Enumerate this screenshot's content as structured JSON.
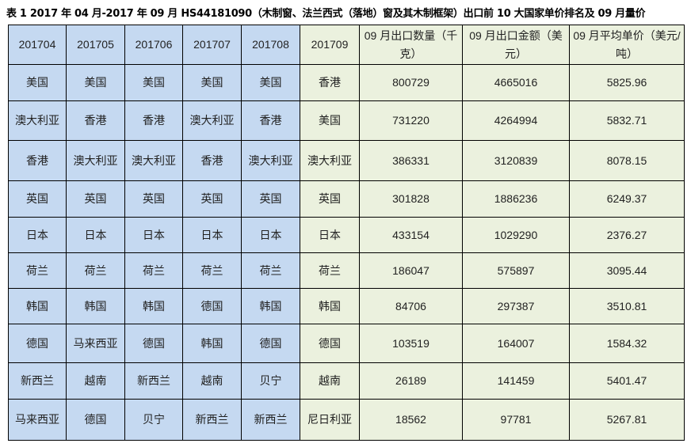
{
  "title": "表 1 2017 年 04 月-2017 年 09 月 HS44181090（木制窗、法兰西式（落地）窗及其木制框架）出口前 10 大国家单价排名及 09 月量价",
  "colors": {
    "blue_cols": "#c5d9f1",
    "green_cols": "#ebf1de"
  },
  "headers": [
    "201704",
    "201705",
    "201706",
    "201707",
    "201708",
    "201709",
    "09 月出口数量（千克）",
    "09 月出口金额（美元）",
    "09 月平均单价（美元/吨）"
  ],
  "rows": [
    [
      "美国",
      "美国",
      "美国",
      "美国",
      "美国",
      "香港",
      "800729",
      "4665016",
      "5825.96"
    ],
    [
      "澳大利亚",
      "香港",
      "香港",
      "澳大利亚",
      "香港",
      "美国",
      "731220",
      "4264994",
      "5832.71"
    ],
    [
      "香港",
      "澳大利亚",
      "澳大利亚",
      "香港",
      "澳大利亚",
      "澳大利亚",
      "386331",
      "3120839",
      "8078.15"
    ],
    [
      "英国",
      "英国",
      "英国",
      "英国",
      "英国",
      "英国",
      "301828",
      "1886236",
      "6249.37"
    ],
    [
      "日本",
      "日本",
      "日本",
      "日本",
      "日本",
      "日本",
      "433154",
      "1029290",
      "2376.27"
    ],
    [
      "荷兰",
      "荷兰",
      "荷兰",
      "荷兰",
      "荷兰",
      "荷兰",
      "186047",
      "575897",
      "3095.44"
    ],
    [
      "韩国",
      "韩国",
      "韩国",
      "德国",
      "韩国",
      "韩国",
      "84706",
      "297387",
      "3510.81"
    ],
    [
      "德国",
      "马来西亚",
      "德国",
      "韩国",
      "德国",
      "德国",
      "103519",
      "164007",
      "1584.32"
    ],
    [
      "新西兰",
      "越南",
      "新西兰",
      "越南",
      "贝宁",
      "越南",
      "26189",
      "141459",
      "5401.47"
    ],
    [
      "马来西亚",
      "德国",
      "贝宁",
      "新西兰",
      "新西兰",
      "尼日利亚",
      "18562",
      "97781",
      "5267.81"
    ]
  ]
}
